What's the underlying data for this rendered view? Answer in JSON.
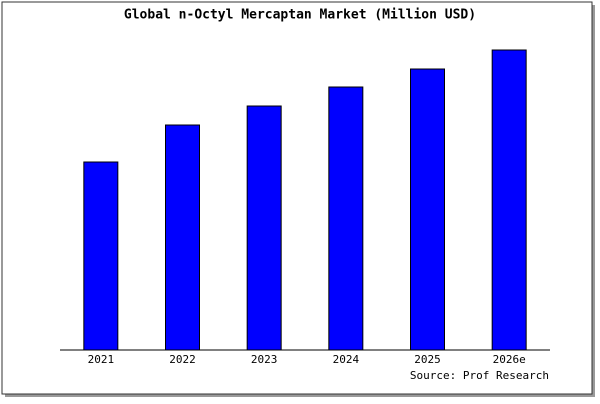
{
  "chart_data": {
    "type": "bar",
    "title": "Global n-Octyl Mercaptan Market (Million USD)",
    "categories": [
      "2021",
      "2022",
      "2023",
      "2024",
      "2025",
      "2026e"
    ],
    "values": [
      188,
      225,
      244,
      263,
      281,
      300
    ],
    "color": "#0000ff",
    "ylim": [
      0,
      305
    ],
    "source": "Source: Prof Research"
  }
}
